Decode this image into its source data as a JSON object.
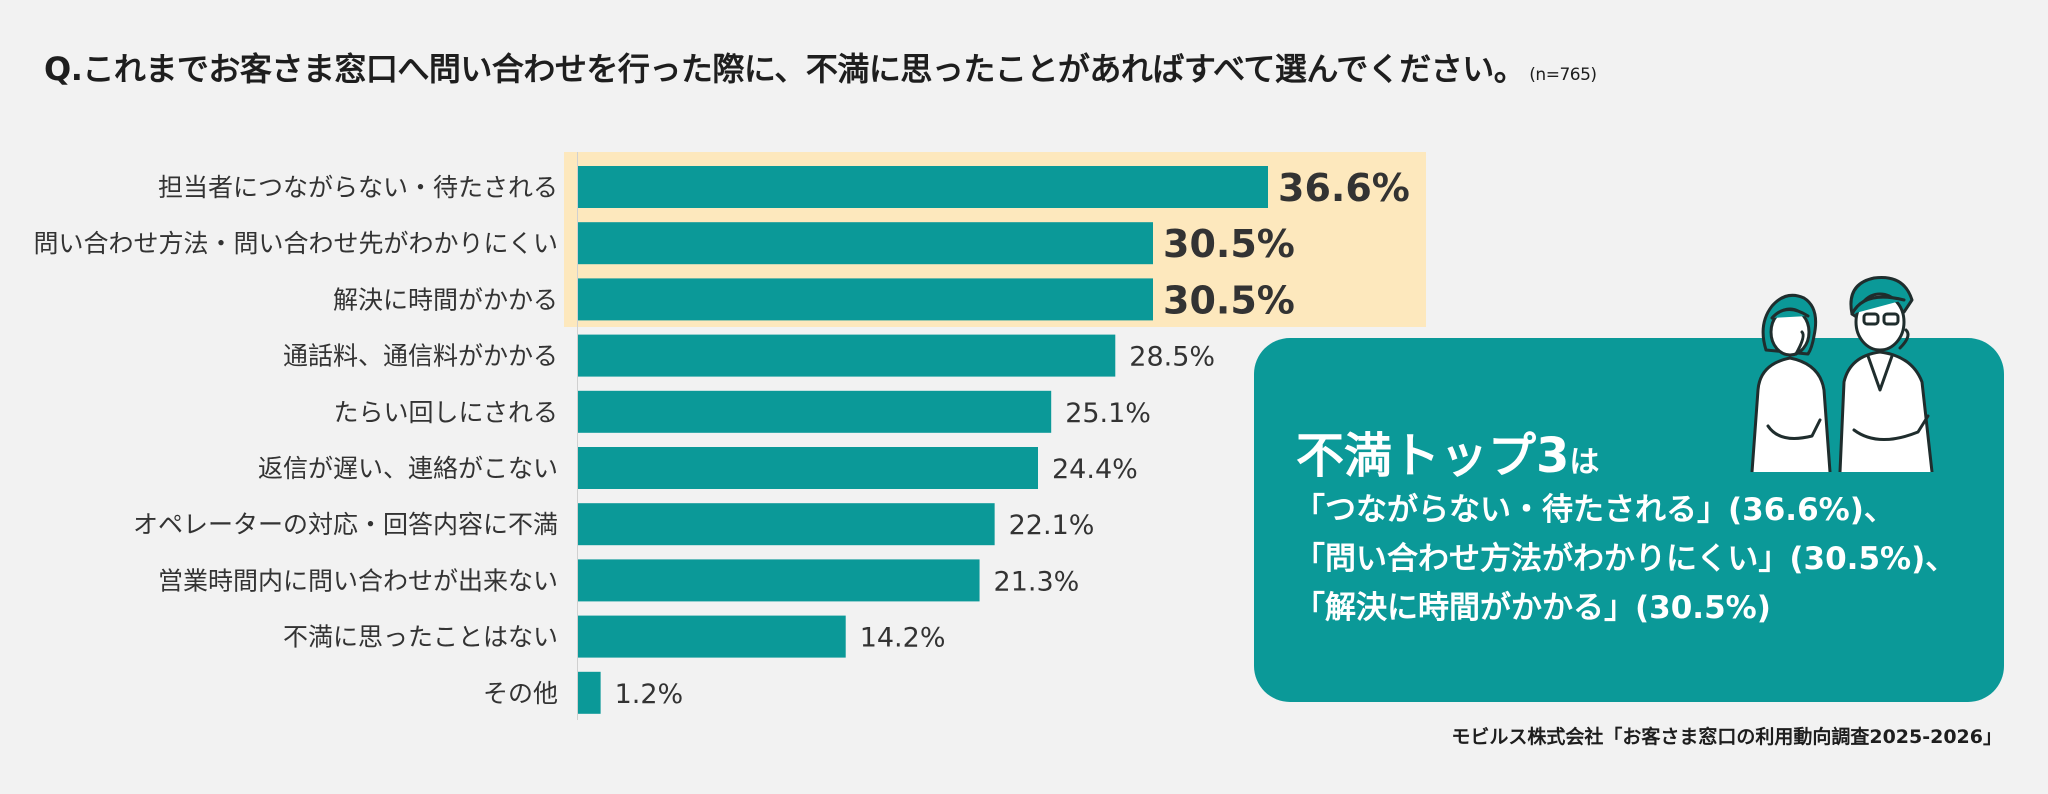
{
  "title": "Q.これまでお客さま窓口へ問い合わせを行った際に、不満に思ったことがあればすべて選んでください。",
  "sample_size": "(n=765)",
  "chart_data": {
    "type": "bar",
    "orientation": "horizontal",
    "categories": [
      "担当者につながらない・待たされる",
      "問い合わせ方法・問い合わせ先がわかりにくい",
      "解決に時間がかかる",
      "通話料、通信料がかかる",
      "たらい回しにされる",
      "返信が遅い、連絡がこない",
      "オペレーターの対応・回答内容に不満",
      "営業時間内に問い合わせが出来ない",
      "不満に思ったことはない",
      "その他"
    ],
    "values": [
      36.6,
      30.5,
      30.5,
      28.5,
      25.1,
      24.4,
      22.1,
      21.3,
      14.2,
      1.2
    ],
    "value_labels": [
      "36.6%",
      "30.5%",
      "30.5%",
      "28.5%",
      "25.1%",
      "24.4%",
      "22.1%",
      "21.3%",
      "14.2%",
      "1.2%"
    ],
    "highlight_top": 3,
    "xlim": [
      0,
      41
    ],
    "bar_color": "#0b9998",
    "highlight_color": "#fde8bd"
  },
  "callout": {
    "heading": "不満トップ3",
    "heading_suffix": "は",
    "lines": [
      "「つながらない・待たされる」(36.6%)、",
      "「問い合わせ方法がわかりにくい」(30.5%)、",
      "「解決に時間がかかる」(30.5%)"
    ]
  },
  "illustration": {
    "icon": "two-people-thinking-icon"
  },
  "source": "モビルス株式会社「お客さま窓口の利用動向調査2025-2026」"
}
